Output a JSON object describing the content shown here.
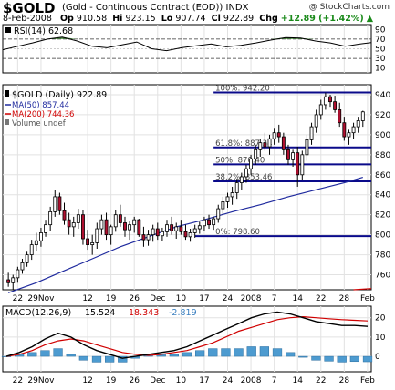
{
  "header": {
    "symbol": "$GOLD",
    "description": "(Gold - Continuous Contract (EOD))",
    "index": "INDX",
    "watermark": "@ StockCharts.com",
    "date": "8-Feb-2008",
    "op_label": "Op",
    "op": "910.58",
    "hi_label": "Hi",
    "hi": "923.15",
    "lo_label": "Lo",
    "lo": "907.74",
    "cl_label": "Cl",
    "cl": "922.89",
    "chg_label": "Chg",
    "chg": "+12.89 (+1.42%)",
    "chg_arrow": "▲"
  },
  "colors": {
    "up_candle": "#ffffff",
    "down_candle": "#b01030",
    "wick": "#000000",
    "ma50": "#1f2a9e",
    "ma200": "#d00000",
    "fib": "#0a0a8a",
    "rsi_fill": "#3a7a2e",
    "macd_hist": "#4d9bd0",
    "macd_line": "#000000",
    "signal_line": "#d00000"
  },
  "chart_data": [
    {
      "type": "line",
      "panel": "RSI",
      "legend": "RSI(14) 62.68",
      "legend_icon": "square-icon",
      "ylim": [
        0,
        100
      ],
      "y_ticks": [
        10,
        30,
        50,
        70,
        90
      ],
      "reference_lines": [
        30,
        70
      ],
      "last_value": 62.68,
      "x": [
        0,
        4,
        8,
        12,
        16,
        20,
        24,
        28,
        32,
        36,
        40,
        44,
        48,
        52,
        56,
        60,
        64,
        68,
        72,
        76,
        80,
        84,
        88,
        92,
        96,
        99
      ],
      "values": [
        48,
        55,
        62,
        70,
        74,
        66,
        55,
        52,
        58,
        64,
        50,
        46,
        52,
        56,
        60,
        54,
        57,
        62,
        68,
        73,
        72,
        66,
        62,
        55,
        60,
        62.68
      ]
    },
    {
      "type": "candlestick",
      "panel": "Price",
      "legend": [
        {
          "label": "$GOLD (Daily) 922.89",
          "icon": "candle-icon",
          "color": "#000000"
        },
        {
          "label": "MA(50) 857.44",
          "color": "#1f2a9e"
        },
        {
          "label": "MA(200) 744.36",
          "color": "#d00000"
        },
        {
          "label": "Volume undef",
          "icon": "bars-icon",
          "color": "#555555"
        }
      ],
      "ylim": [
        745,
        950
      ],
      "y_ticks": [
        760,
        780,
        800,
        820,
        840,
        860,
        880,
        900,
        920,
        940
      ],
      "x_tick_labels": [
        "22",
        "29Nov",
        "12",
        "19",
        "26",
        "Dec",
        "10",
        "17",
        "24",
        "2008",
        "7",
        "14",
        "22",
        "28",
        "Feb"
      ],
      "x_tick_index": [
        2,
        7,
        17,
        22,
        27,
        32,
        37,
        42,
        47,
        52,
        57,
        62,
        67,
        72,
        77
      ],
      "candles": [
        [
          755,
          762,
          748,
          752
        ],
        [
          752,
          760,
          745,
          757
        ],
        [
          757,
          768,
          752,
          765
        ],
        [
          765,
          776,
          761,
          772
        ],
        [
          772,
          783,
          768,
          780
        ],
        [
          780,
          795,
          775,
          790
        ],
        [
          790,
          802,
          784,
          794
        ],
        [
          794,
          807,
          788,
          802
        ],
        [
          802,
          815,
          798,
          810
        ],
        [
          810,
          828,
          804,
          823
        ],
        [
          823,
          845,
          818,
          838
        ],
        [
          838,
          842,
          820,
          824
        ],
        [
          824,
          832,
          810,
          815
        ],
        [
          815,
          822,
          800,
          808
        ],
        [
          808,
          818,
          798,
          812
        ],
        [
          812,
          826,
          806,
          820
        ],
        [
          820,
          825,
          790,
          796
        ],
        [
          796,
          805,
          785,
          790
        ],
        [
          790,
          800,
          780,
          792
        ],
        [
          792,
          812,
          786,
          806
        ],
        [
          806,
          820,
          800,
          815
        ],
        [
          815,
          822,
          795,
          800
        ],
        [
          800,
          810,
          790,
          808
        ],
        [
          808,
          825,
          803,
          820
        ],
        [
          820,
          830,
          808,
          812
        ],
        [
          812,
          818,
          798,
          805
        ],
        [
          805,
          814,
          795,
          810
        ],
        [
          810,
          818,
          802,
          815
        ],
        [
          815,
          816,
          798,
          800
        ],
        [
          800,
          808,
          788,
          795
        ],
        [
          795,
          805,
          789,
          800
        ],
        [
          800,
          810,
          793,
          806
        ],
        [
          806,
          812,
          795,
          799
        ],
        [
          799,
          807,
          794,
          803
        ],
        [
          803,
          815,
          798,
          810
        ],
        [
          810,
          818,
          800,
          804
        ],
        [
          804,
          812,
          796,
          808
        ],
        [
          808,
          815,
          800,
          803
        ],
        [
          803,
          810,
          795,
          798
        ],
        [
          798,
          806,
          793,
          802
        ],
        [
          802,
          810,
          797,
          806
        ],
        [
          806,
          813,
          801,
          809
        ],
        [
          809,
          818,
          804,
          815
        ],
        [
          815,
          820,
          806,
          810
        ],
        [
          810,
          818,
          805,
          816
        ],
        [
          816,
          830,
          812,
          826
        ],
        [
          826,
          838,
          820,
          833
        ],
        [
          833,
          842,
          827,
          838
        ],
        [
          838,
          848,
          830,
          842
        ],
        [
          842,
          856,
          836,
          852
        ],
        [
          852,
          862,
          845,
          858
        ],
        [
          858,
          870,
          852,
          866
        ],
        [
          866,
          880,
          860,
          876
        ],
        [
          876,
          890,
          870,
          885
        ],
        [
          885,
          896,
          878,
          892
        ],
        [
          892,
          902,
          884,
          888
        ],
        [
          888,
          900,
          880,
          896
        ],
        [
          896,
          906,
          890,
          902
        ],
        [
          902,
          910,
          892,
          898
        ],
        [
          898,
          902,
          880,
          885
        ],
        [
          885,
          890,
          870,
          875
        ],
        [
          875,
          885,
          868,
          882
        ],
        [
          882,
          888,
          848,
          860
        ],
        [
          860,
          884,
          855,
          880
        ],
        [
          880,
          900,
          874,
          895
        ],
        [
          895,
          912,
          890,
          908
        ],
        [
          908,
          925,
          902,
          920
        ],
        [
          920,
          935,
          915,
          930
        ],
        [
          930,
          942,
          925,
          938
        ],
        [
          938,
          940,
          928,
          933
        ],
        [
          933,
          939,
          922,
          925
        ],
        [
          925,
          932,
          908,
          912
        ],
        [
          912,
          918,
          894,
          898
        ],
        [
          898,
          905,
          890,
          902
        ],
        [
          902,
          912,
          896,
          908
        ],
        [
          908,
          918,
          902,
          914
        ],
        [
          914,
          924,
          908,
          922.89
        ]
      ],
      "ma50": [
        [
          0,
          742
        ],
        [
          6,
          752
        ],
        [
          12,
          764
        ],
        [
          18,
          776
        ],
        [
          24,
          788
        ],
        [
          30,
          798
        ],
        [
          36,
          808
        ],
        [
          42,
          815
        ],
        [
          48,
          823
        ],
        [
          54,
          830
        ],
        [
          60,
          838
        ],
        [
          66,
          845
        ],
        [
          72,
          852
        ],
        [
          76,
          857.44
        ]
      ],
      "ma200_visible_end": 744.36,
      "fibonacci": [
        {
          "label": "100%: 942.20",
          "value": 942.2
        },
        {
          "label": "61.8%: 887.34",
          "value": 887.34
        },
        {
          "label": "50%: 870.40",
          "value": 870.4
        },
        {
          "label": "38.2%: 853.46",
          "value": 853.46
        },
        {
          "label": "0%: 798.60",
          "value": 798.6
        }
      ]
    },
    {
      "type": "line",
      "panel": "MACD",
      "legend": [
        {
          "label": "MACD(12,26,9)",
          "color": "#000000"
        },
        {
          "label": "15.524",
          "color": "#000000"
        },
        {
          "label": "18.343",
          "color": "#d00000"
        },
        {
          "label": "-2.819",
          "color": "#3a7fc0"
        }
      ],
      "ylim": [
        -8,
        26
      ],
      "y_ticks": [
        0,
        10,
        20
      ],
      "x_tick_labels": [
        "22",
        "29Nov",
        "12",
        "19",
        "26",
        "Dec",
        "10",
        "17",
        "24",
        "2008",
        "7",
        "14",
        "22",
        "28",
        "Feb"
      ],
      "macd_line": [
        0,
        2,
        5,
        9,
        12,
        10,
        6,
        3,
        1,
        -1,
        0,
        1,
        2,
        3,
        5,
        8,
        11,
        14,
        17,
        20,
        22,
        23,
        22,
        20,
        18,
        17,
        16,
        16,
        15.524
      ],
      "signal_line": [
        0,
        1,
        3,
        6,
        8,
        9,
        8,
        6,
        4,
        2,
        1,
        0.5,
        1,
        2,
        3,
        5,
        7,
        10,
        13,
        15,
        17,
        19,
        20,
        20.5,
        20,
        19.5,
        19,
        18.7,
        18.343
      ],
      "histogram": [
        0,
        1,
        2,
        3,
        4,
        1,
        -2,
        -3,
        -3,
        -3,
        -1,
        0.5,
        1,
        1,
        2,
        3,
        4,
        4,
        4,
        5,
        5,
        4,
        2,
        -0.5,
        -2,
        -2.5,
        -3,
        -2.7,
        -2.819
      ]
    }
  ]
}
